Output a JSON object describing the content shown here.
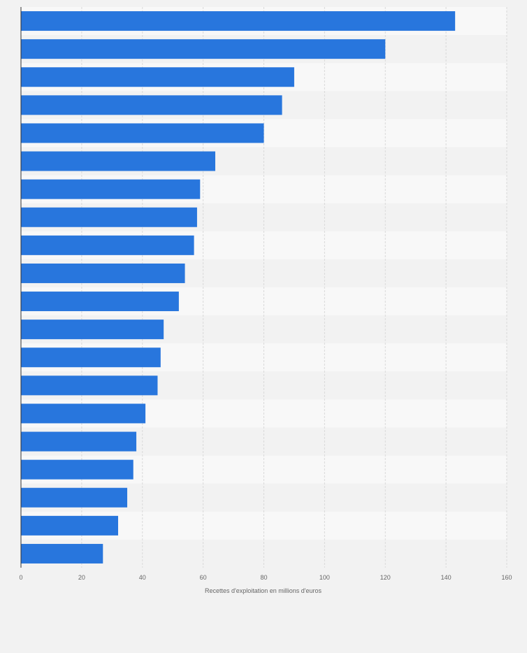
{
  "chart_data": {
    "type": "bar",
    "orientation": "horizontal",
    "title": "",
    "xlabel": "Recettes d'exploitation en millions d'euros",
    "ylabel": "",
    "categories": [
      "",
      "",
      "",
      "",
      "",
      "",
      "",
      "",
      "",
      "",
      "",
      "",
      "",
      "",
      "",
      "",
      "",
      "",
      "",
      ""
    ],
    "values": [
      143,
      120,
      90,
      86,
      80,
      64,
      59,
      58,
      57,
      54,
      52,
      47,
      46,
      45,
      41,
      38,
      37,
      35,
      32,
      27
    ],
    "xlim": [
      0,
      160
    ],
    "xticks": [
      "0",
      "20",
      "40",
      "60",
      "80",
      "100",
      "120",
      "140",
      "160"
    ],
    "grid": true,
    "colors": {
      "bar": "#2876dd",
      "band_light": "#f8f8f8",
      "band_dark": "#f2f2f2",
      "grid": "#d9d9d9",
      "axis": "#333333",
      "text": "#666666"
    }
  }
}
